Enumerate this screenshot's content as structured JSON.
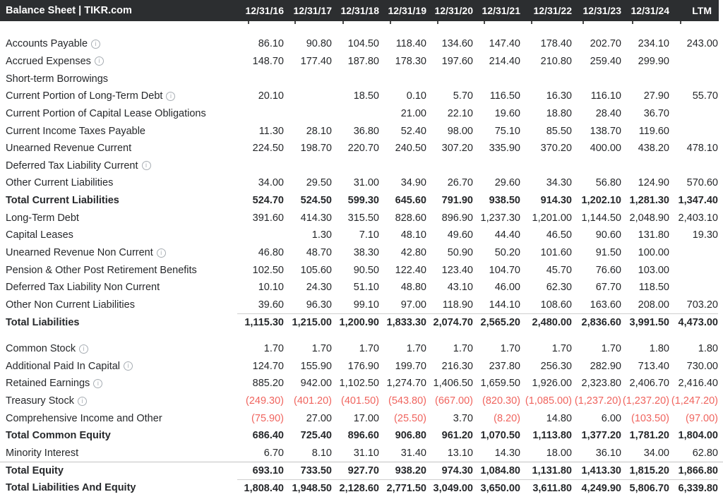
{
  "header": {
    "title": "Balance Sheet | TIKR.com",
    "columns": [
      "12/31/16",
      "12/31/17",
      "12/31/18",
      "12/31/19",
      "12/31/20",
      "12/31/21",
      "12/31/22",
      "12/31/23",
      "12/31/24",
      "LTM"
    ]
  },
  "colors": {
    "header_bg": "#2c2e30",
    "header_text": "#ffffff",
    "body_text": "#26282b",
    "negative": "#f0645e",
    "rule_light": "#cfcfcf",
    "rule_full": "#c2c2c2"
  },
  "icons": {
    "info": "i"
  },
  "rows": [
    {
      "label": "Accounts Payable",
      "info": true,
      "bold": false,
      "line": "none",
      "gap": false,
      "values": [
        "86.10",
        "90.80",
        "104.50",
        "118.40",
        "134.60",
        "147.40",
        "178.40",
        "202.70",
        "234.10",
        "243.00"
      ]
    },
    {
      "label": "Accrued Expenses",
      "info": true,
      "bold": false,
      "line": "none",
      "gap": false,
      "values": [
        "148.70",
        "177.40",
        "187.80",
        "178.30",
        "197.60",
        "214.40",
        "210.80",
        "259.40",
        "299.90",
        ""
      ]
    },
    {
      "label": "Short-term Borrowings",
      "info": false,
      "bold": false,
      "line": "none",
      "gap": false,
      "values": [
        "",
        "",
        "",
        "",
        "",
        "",
        "",
        "",
        "",
        ""
      ]
    },
    {
      "label": "Current Portion of Long-Term Debt",
      "info": true,
      "bold": false,
      "line": "none",
      "gap": false,
      "values": [
        "20.10",
        "",
        "18.50",
        "0.10",
        "5.70",
        "116.50",
        "16.30",
        "116.10",
        "27.90",
        "55.70"
      ]
    },
    {
      "label": "Current Portion of Capital Lease Obligations",
      "info": false,
      "bold": false,
      "line": "none",
      "gap": false,
      "values": [
        "",
        "",
        "",
        "21.00",
        "22.10",
        "19.60",
        "18.80",
        "28.40",
        "36.70",
        ""
      ]
    },
    {
      "label": "Current Income Taxes Payable",
      "info": false,
      "bold": false,
      "line": "none",
      "gap": false,
      "values": [
        "11.30",
        "28.10",
        "36.80",
        "52.40",
        "98.00",
        "75.10",
        "85.50",
        "138.70",
        "119.60",
        ""
      ]
    },
    {
      "label": "Unearned Revenue Current",
      "info": false,
      "bold": false,
      "line": "none",
      "gap": false,
      "values": [
        "224.50",
        "198.70",
        "220.70",
        "240.50",
        "307.20",
        "335.90",
        "370.20",
        "400.00",
        "438.20",
        "478.10"
      ]
    },
    {
      "label": "Deferred Tax Liability Current",
      "info": true,
      "bold": false,
      "line": "none",
      "gap": false,
      "values": [
        "",
        "",
        "",
        "",
        "",
        "",
        "",
        "",
        "",
        ""
      ]
    },
    {
      "label": "Other Current Liabilities",
      "info": false,
      "bold": false,
      "line": "none",
      "gap": false,
      "values": [
        "34.00",
        "29.50",
        "31.00",
        "34.90",
        "26.70",
        "29.60",
        "34.30",
        "56.80",
        "124.90",
        "570.60"
      ]
    },
    {
      "label": "Total Current Liabilities",
      "info": false,
      "bold": true,
      "line": "none",
      "gap": false,
      "values": [
        "524.70",
        "524.50",
        "599.30",
        "645.60",
        "791.90",
        "938.50",
        "914.30",
        "1,202.10",
        "1,281.30",
        "1,347.40"
      ]
    },
    {
      "label": "Long-Term Debt",
      "info": false,
      "bold": false,
      "line": "none",
      "gap": false,
      "values": [
        "391.60",
        "414.30",
        "315.50",
        "828.60",
        "896.90",
        "1,237.30",
        "1,201.00",
        "1,144.50",
        "2,048.90",
        "2,403.10"
      ]
    },
    {
      "label": "Capital Leases",
      "info": false,
      "bold": false,
      "line": "none",
      "gap": false,
      "values": [
        "",
        "1.30",
        "7.10",
        "48.10",
        "49.60",
        "44.40",
        "46.50",
        "90.60",
        "131.80",
        "19.30"
      ]
    },
    {
      "label": "Unearned Revenue Non Current",
      "info": true,
      "bold": false,
      "line": "none",
      "gap": false,
      "values": [
        "46.80",
        "48.70",
        "38.30",
        "42.80",
        "50.90",
        "50.20",
        "101.60",
        "91.50",
        "100.00",
        ""
      ]
    },
    {
      "label": "Pension & Other Post Retirement Benefits",
      "info": false,
      "bold": false,
      "line": "none",
      "gap": false,
      "values": [
        "102.50",
        "105.60",
        "90.50",
        "122.40",
        "123.40",
        "104.70",
        "45.70",
        "76.60",
        "103.00",
        ""
      ]
    },
    {
      "label": "Deferred Tax Liability Non Current",
      "info": false,
      "bold": false,
      "line": "none",
      "gap": false,
      "values": [
        "10.10",
        "24.30",
        "51.10",
        "48.80",
        "43.10",
        "46.00",
        "62.30",
        "67.70",
        "118.50",
        ""
      ]
    },
    {
      "label": "Other Non Current Liabilities",
      "info": false,
      "bold": false,
      "line": "none",
      "gap": false,
      "values": [
        "39.60",
        "96.30",
        "99.10",
        "97.00",
        "118.90",
        "144.10",
        "108.60",
        "163.60",
        "208.00",
        "703.20"
      ]
    },
    {
      "label": "Total Liabilities",
      "info": false,
      "bold": true,
      "line": "cells",
      "gap": false,
      "values": [
        "1,115.30",
        "1,215.00",
        "1,200.90",
        "1,833.30",
        "2,074.70",
        "2,565.20",
        "2,480.00",
        "2,836.60",
        "3,991.50",
        "4,473.00"
      ]
    },
    {
      "label": "Common Stock",
      "info": true,
      "bold": false,
      "line": "none",
      "gap": true,
      "values": [
        "1.70",
        "1.70",
        "1.70",
        "1.70",
        "1.70",
        "1.70",
        "1.70",
        "1.70",
        "1.80",
        "1.80"
      ]
    },
    {
      "label": "Additional Paid In Capital",
      "info": true,
      "bold": false,
      "line": "none",
      "gap": false,
      "values": [
        "124.70",
        "155.90",
        "176.90",
        "199.70",
        "216.30",
        "237.80",
        "256.30",
        "282.90",
        "713.40",
        "730.00"
      ]
    },
    {
      "label": "Retained Earnings",
      "info": true,
      "bold": false,
      "line": "none",
      "gap": false,
      "values": [
        "885.20",
        "942.00",
        "1,102.50",
        "1,274.70",
        "1,406.50",
        "1,659.50",
        "1,926.00",
        "2,323.80",
        "2,406.70",
        "2,416.40"
      ]
    },
    {
      "label": "Treasury Stock",
      "info": true,
      "bold": false,
      "line": "none",
      "gap": false,
      "values": [
        "(249.30)",
        "(401.20)",
        "(401.50)",
        "(543.80)",
        "(667.00)",
        "(820.30)",
        "(1,085.00)",
        "(1,237.20)",
        "(1,237.20)",
        "(1,247.20)"
      ]
    },
    {
      "label": "Comprehensive Income and Other",
      "info": false,
      "bold": false,
      "line": "none",
      "gap": false,
      "values": [
        "(75.90)",
        "27.00",
        "17.00",
        "(25.50)",
        "3.70",
        "(8.20)",
        "14.80",
        "6.00",
        "(103.50)",
        "(97.00)"
      ]
    },
    {
      "label": "Total Common Equity",
      "info": false,
      "bold": true,
      "line": "none",
      "gap": false,
      "values": [
        "686.40",
        "725.40",
        "896.60",
        "906.80",
        "961.20",
        "1,070.50",
        "1,113.80",
        "1,377.20",
        "1,781.20",
        "1,804.00"
      ]
    },
    {
      "label": "Minority Interest",
      "info": false,
      "bold": false,
      "line": "none",
      "gap": false,
      "values": [
        "6.70",
        "8.10",
        "31.10",
        "31.40",
        "13.10",
        "14.30",
        "18.00",
        "36.10",
        "34.00",
        "62.80"
      ]
    },
    {
      "label": "Total Equity",
      "info": false,
      "bold": true,
      "line": "full",
      "gap": false,
      "values": [
        "693.10",
        "733.50",
        "927.70",
        "938.20",
        "974.30",
        "1,084.80",
        "1,131.80",
        "1,413.30",
        "1,815.20",
        "1,866.80"
      ]
    },
    {
      "label": "Total Liabilities And Equity",
      "info": false,
      "bold": true,
      "line": "cells",
      "gap": false,
      "values": [
        "1,808.40",
        "1,948.50",
        "2,128.60",
        "2,771.50",
        "3,049.00",
        "3,650.00",
        "3,611.80",
        "4,249.90",
        "5,806.70",
        "6,339.80"
      ]
    }
  ]
}
